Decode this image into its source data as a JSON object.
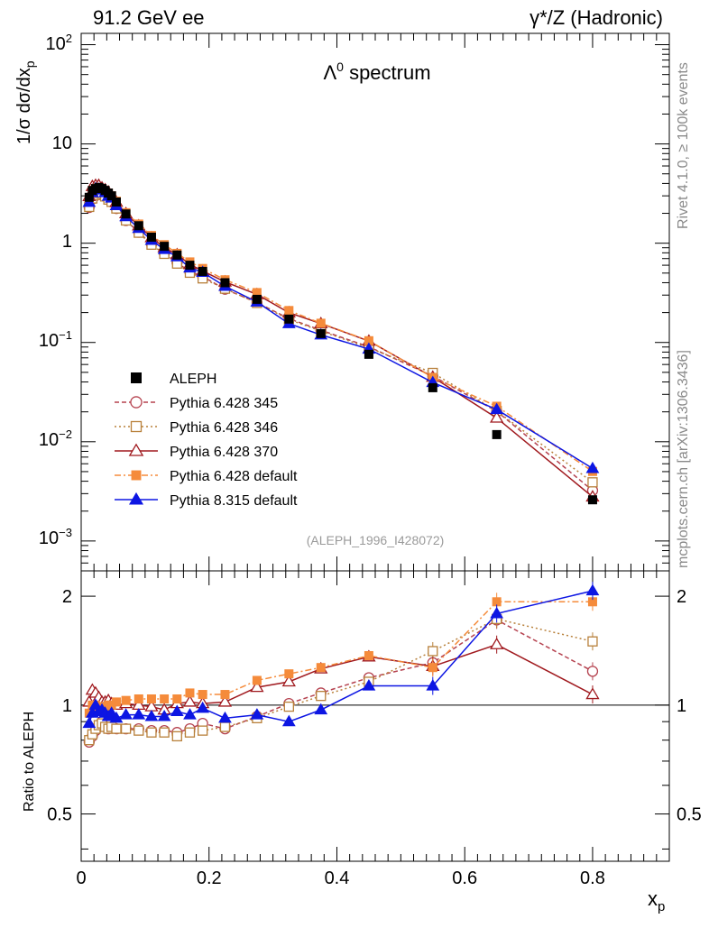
{
  "header": {
    "left": "91.2 GeV ee",
    "right": "γ*/Z (Hadronic)"
  },
  "side": {
    "version": "Rivet 4.1.0, ≥ 100k events",
    "credit": "mcplots.cern.ch [arXiv:1306.3436]"
  },
  "chart_data": {
    "type": "line",
    "title": "Λ0 spectrum",
    "analysis": "(ALEPH_1996_I428072)",
    "xlabel": "xp",
    "ylabel": "1/σ dσ/dxp",
    "ratio_ylabel": "Ratio to ALEPH",
    "xlim": [
      0,
      0.92
    ],
    "ylim": [
      0.0005,
      130
    ],
    "ratio_ylim": [
      0.37,
      2.35
    ],
    "x_ticks": [
      "0",
      "0.2",
      "0.4",
      "0.6",
      "0.8"
    ],
    "y_ticks": [
      "10−3",
      "10−2",
      "10−1",
      "1",
      "10",
      "102"
    ],
    "ratio_ticks": [
      "0.5",
      "1",
      "2"
    ],
    "x": [
      0.0125,
      0.0175,
      0.0225,
      0.0275,
      0.0325,
      0.0375,
      0.0425,
      0.0475,
      0.055,
      0.07,
      0.09,
      0.11,
      0.13,
      0.15,
      0.17,
      0.19,
      0.225,
      0.275,
      0.325,
      0.375,
      0.45,
      0.55,
      0.65,
      0.8
    ],
    "data": {
      "name": "ALEPH",
      "values": [
        2.9,
        3.4,
        3.55,
        3.65,
        3.55,
        3.4,
        3.2,
        3.0,
        2.6,
        1.97,
        1.5,
        1.15,
        0.93,
        0.76,
        0.6,
        0.52,
        0.4,
        0.272,
        0.172,
        0.123,
        0.076,
        0.035,
        0.0118,
        0.0026
      ]
    },
    "series": [
      {
        "name": "Pythia 6.428 345",
        "color": "#b5424f",
        "dash": "5,3",
        "marker": "circle-open",
        "ratio": [
          0.79,
          0.82,
          0.85,
          0.88,
          0.9,
          0.87,
          0.86,
          0.87,
          0.86,
          0.86,
          0.86,
          0.85,
          0.85,
          0.84,
          0.86,
          0.89,
          0.86,
          0.93,
          1.01,
          1.08,
          1.19,
          1.31,
          1.72,
          1.24
        ]
      },
      {
        "name": "Pythia 6.428 346",
        "color": "#b8803a",
        "dash": "2,3",
        "marker": "square-open",
        "ratio": [
          0.8,
          0.83,
          0.86,
          0.88,
          0.89,
          0.87,
          0.86,
          0.87,
          0.86,
          0.86,
          0.85,
          0.84,
          0.84,
          0.82,
          0.84,
          0.85,
          0.87,
          0.92,
          0.99,
          1.06,
          1.16,
          1.41,
          1.73,
          1.5
        ]
      },
      {
        "name": "Pythia 6.428 370",
        "color": "#a0191e",
        "dash": "",
        "marker": "triangle-open",
        "ratio": [
          1.02,
          1.1,
          1.08,
          1.05,
          1.02,
          1.02,
          1.03,
          1.01,
          1.0,
          1.01,
          1.0,
          0.99,
          0.97,
          1.01,
          1.02,
          1.01,
          1.02,
          1.12,
          1.16,
          1.26,
          1.36,
          1.28,
          1.47,
          1.07
        ]
      },
      {
        "name": "Pythia 6.428 default",
        "color": "#f58b3b",
        "dash": "7,3,2,3",
        "marker": "square-filled",
        "ratio": [
          0.95,
          1.0,
          1.0,
          0.99,
          0.99,
          0.98,
          1.0,
          1.0,
          1.02,
          1.03,
          1.04,
          1.04,
          1.04,
          1.04,
          1.08,
          1.07,
          1.07,
          1.17,
          1.22,
          1.27,
          1.37,
          1.27,
          1.93,
          1.93
        ]
      },
      {
        "name": "Pythia 8.315 default",
        "color": "#0d16e3",
        "dash": "",
        "marker": "triangle-filled",
        "ratio": [
          0.89,
          0.95,
          1.0,
          0.96,
          0.97,
          0.95,
          0.93,
          0.95,
          0.92,
          0.94,
          0.94,
          0.93,
          0.93,
          0.96,
          0.94,
          0.98,
          0.92,
          0.94,
          0.9,
          0.97,
          1.13,
          1.13,
          1.79,
          2.07
        ]
      }
    ],
    "legend_position": "middle-left"
  }
}
